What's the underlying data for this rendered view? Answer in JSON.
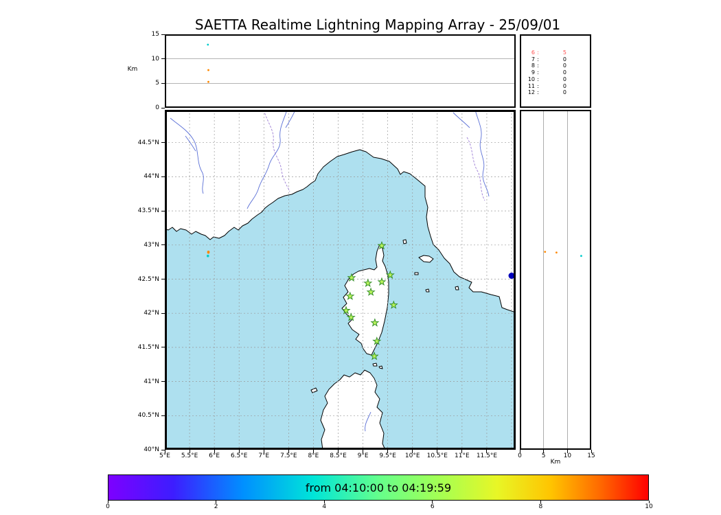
{
  "title": "SAETTA Realtime Lightning Mapping Array - 25/09/01",
  "alt_axis": {
    "label": "Km",
    "tick_values": [
      0,
      5,
      10,
      15
    ],
    "tick_labels": [
      "0",
      "5",
      "10",
      "15"
    ],
    "grid_values": [
      5,
      10
    ],
    "max": 15
  },
  "map": {
    "lon_min": 5.0,
    "lon_max": 12.083,
    "lat_min": 40.0,
    "lat_max": 44.98,
    "lon_ticks": [
      {
        "v": 5,
        "label": "5°E"
      },
      {
        "v": 5.5,
        "label": "5.5°E"
      },
      {
        "v": 6,
        "label": "6°E"
      },
      {
        "v": 6.5,
        "label": "6.5°E"
      },
      {
        "v": 7,
        "label": "7°E"
      },
      {
        "v": 7.5,
        "label": "7.5°E"
      },
      {
        "v": 8,
        "label": "8°E"
      },
      {
        "v": 8.5,
        "label": "8.5°E"
      },
      {
        "v": 9,
        "label": "9°E"
      },
      {
        "v": 9.5,
        "label": "9.5°E"
      },
      {
        "v": 10,
        "label": "10°E"
      },
      {
        "v": 10.5,
        "label": "10.5°E"
      },
      {
        "v": 11,
        "label": "11°E"
      },
      {
        "v": 11.5,
        "label": "11.5°E"
      }
    ],
    "lat_ticks": [
      {
        "v": 44.5,
        "label": "44.5°N"
      },
      {
        "v": 44,
        "label": "44°N"
      },
      {
        "v": 43.5,
        "label": "43.5°N"
      },
      {
        "v": 43,
        "label": "43°N"
      },
      {
        "v": 42.5,
        "label": "42.5°N"
      },
      {
        "v": 42,
        "label": "42°N"
      },
      {
        "v": 41.5,
        "label": "41.5°N"
      },
      {
        "v": 41,
        "label": "41°N"
      },
      {
        "v": 40.5,
        "label": "40.5°N"
      },
      {
        "v": 40,
        "label": "40°N"
      }
    ],
    "lon_grid": [
      5.5,
      6,
      6.5,
      7,
      7.5,
      8,
      8.5,
      9,
      9.5,
      10,
      10.5,
      11,
      11.5,
      12
    ],
    "lat_grid": [
      44.5,
      44,
      43.5,
      43,
      42.5,
      42,
      41.5,
      41,
      40.5
    ],
    "colors": {
      "sea": "#aee0ef",
      "land": "#ffffff",
      "coast": "#000000",
      "river": "#5a6fd6",
      "border": "#9b7bd4",
      "grid": "#999999"
    },
    "land_paths": [
      "M 0,0 L 511,0 L 511,295 L 499,291 L 491,288 L 487,272 L 475,269 L 461,265 L 449,265 L 443,259 L 447,251 L 438,247 L 429,243 L 421,236 L 415,224 L 407,216 L 399,204 L 391,196 L 387,184 L 383,170 L 381,156 L 383,142 L 379,127 L 379,111 L 367,101 L 357,93 L 348,90 L 343,94 L 339,86 L 327,75 L 315,71 L 304,69 L 293,61 L 284,58 L 273,61 L 261,65 L 251,68 L 241,75 L 231,83 L 223,93 L 219,103 L 213,107 L 207,112 L 201,116 L 193,119 L 185,123 L 175,125 L 165,129 L 157,135 L 151,139 L 146,143 L 141,149 L 135,153 L 127,159 L 121,165 L 113,169 L 107,175 L 101,171 L 93,177 L 87,183 L 79,187 L 71,185 L 66,189 L 59,183 L 53,181 L 45,177 L 39,181 L 31,175 L 23,173 L 17,177 L 11,171 L 5,175 L 0,173 Z",
      "M 313,196 L 317,202 L 319,212 L 317,220 L 321,228 L 324,238 L 326,250 L 326,268 L 324,288 L 320,308 L 316,324 L 310,339 L 305,349 L 301,357 L 294,355 L 289,348 L 286,340 L 278,334 L 283,327 L 273,320 L 267,311 L 274,304 L 265,298 L 258,289 L 265,282 L 260,273 L 267,265 L 262,256 L 268,246 L 275,239 L 282,235 L 290,233 L 298,231 L 305,233 L 309,229 L 307,218 L 309,206 Z",
      "M 230,495 L 228,480 L 233,466 L 227,452 L 231,437 L 237,427 L 233,417 L 239,407 L 247,399 L 255,393 L 261,386 L 269,389 L 277,383 L 285,386 L 291,379 L 299,383 L 305,391 L 309,401 L 306,411 L 313,421 L 309,433 L 317,441 L 313,456 L 319,471 L 317,486 L 321,495 Z",
      "M 370,215 L 377,212 L 385,213 L 391,217 L 386,222 L 377,221 Z",
      "M 347,190 L 351,189 L 352,194 L 348,195 Z",
      "M 364,237 L 369,237 L 369,240 L 364,240 Z",
      "M 380,262 L 384,261 L 385,265 L 381,265 Z",
      "M 423,258 L 427,257 L 428,262 L 424,262 Z",
      "M 303,370 L 308,369 L 309,373 L 304,373 Z",
      "M 312,374 L 316,373 L 317,377 L 313,376 Z",
      "M 213,408 L 220,405 L 222,409 L 215,412 Z"
    ],
    "river_paths": [
      "M 178,0 C 172,18 166,28 168,42 C 170,58 156,66 152,80 C 148,94 140,102 136,116 C 132,128 124,134 120,144",
      "M 190,0 C 186,10 182,16 176,26",
      "M 8,12 C 20,22 34,30 42,44 C 50,58 46,76 54,90 C 60,100 52,112 56,122",
      "M 30,38 C 36,46 40,52 45,60",
      "M 452,0 C 456,16 464,28 460,44 C 456,60 468,72 464,88 C 460,104 470,112 472,126",
      "M 420,4 C 428,12 436,18 444,26",
      "M 300,440 C 296,450 290,458 292,468"
    ],
    "border_paths": [
      "M 144,0 C 150,20 160,30 158,46 C 156,62 168,72 170,88 C 172,102 178,110 182,119",
      "M 440,40 C 450,56 446,74 456,90 C 462,102 458,118 466,132"
    ]
  },
  "station_count_panel": {
    "separator": ":",
    "rows": [
      {
        "stations": "6",
        "count": "5",
        "color": "#ff5050"
      },
      {
        "stations": "7",
        "count": "0",
        "color": "#000000"
      },
      {
        "stations": "8",
        "count": "0",
        "color": "#000000"
      },
      {
        "stations": "9",
        "count": "0",
        "color": "#000000"
      },
      {
        "stations": "10",
        "count": "0",
        "color": "#000000"
      },
      {
        "stations": "11",
        "count": "0",
        "color": "#000000"
      },
      {
        "stations": "12",
        "count": "0",
        "color": "#000000"
      }
    ]
  },
  "colorbar": {
    "label": "from 04:10:00 to 04:19:59",
    "tick_values": [
      0,
      2,
      4,
      6,
      8,
      10
    ],
    "tick_labels": [
      "0",
      "2",
      "4",
      "6",
      "8",
      "10"
    ],
    "min": 0,
    "max": 10,
    "gradient": [
      "#7d00ff 0%",
      "#3d1dff 12%",
      "#0090ff 25%",
      "#00e5d8 38%",
      "#64ff8c 50%",
      "#a8ff50 62%",
      "#e8f626 72%",
      "#ffc400 82%",
      "#ff6a00 91%",
      "#ff0000 100%"
    ]
  },
  "style": {
    "star_fill": "#b8f25c",
    "star_stroke": "#2e8b22"
  },
  "chart_data": {
    "type": "scatter",
    "title": "SAETTA Realtime Lightning Mapping Array - 25/09/01",
    "time_window": "from 04:10:00 to 04:19:59",
    "map_extent": {
      "lon": [
        5.0,
        12.083
      ],
      "lat": [
        40.0,
        44.98
      ]
    },
    "altitude_km_range": [
      0,
      15
    ],
    "colorbar_range": [
      0,
      10
    ],
    "lma_stations_lonlat": [
      [
        9.38,
        42.99
      ],
      [
        8.77,
        42.52
      ],
      [
        9.1,
        42.44
      ],
      [
        9.38,
        42.46
      ],
      [
        9.55,
        42.56
      ],
      [
        8.74,
        42.25
      ],
      [
        9.16,
        42.31
      ],
      [
        8.66,
        42.04
      ],
      [
        8.76,
        41.94
      ],
      [
        9.62,
        42.12
      ],
      [
        9.24,
        41.86
      ],
      [
        9.28,
        41.59
      ],
      [
        9.23,
        41.37
      ]
    ],
    "sources": [
      {
        "lon": 5.88,
        "lat": 42.9,
        "alt_km": 5.3,
        "color": "#ff8800"
      },
      {
        "lon": 5.88,
        "lat": 42.89,
        "alt_km": 7.7,
        "color": "#ff8800"
      },
      {
        "lon": 5.87,
        "lat": 42.84,
        "alt_km": 12.9,
        "color": "#00cccc"
      }
    ],
    "edge_marker": {
      "lon": 12.0,
      "lat": 42.55,
      "color": "#0000bb",
      "r": 4.5
    },
    "stations_contributing_counts": [
      [
        6,
        5
      ],
      [
        7,
        0
      ],
      [
        8,
        0
      ],
      [
        9,
        0
      ],
      [
        10,
        0
      ],
      [
        11,
        0
      ],
      [
        12,
        0
      ]
    ]
  }
}
